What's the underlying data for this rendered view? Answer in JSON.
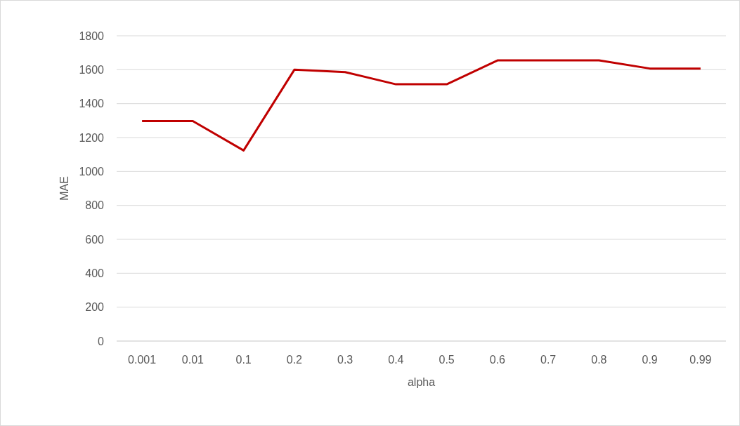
{
  "chart_data": {
    "type": "line",
    "xlabel": "alpha",
    "ylabel": "MAE",
    "categories": [
      "0.001",
      "0.01",
      "0.1",
      "0.2",
      "0.3",
      "0.4",
      "0.5",
      "0.6",
      "0.7",
      "0.8",
      "0.9",
      "0.99"
    ],
    "series": [
      {
        "color": "#c00000",
        "values": [
          1297,
          1297,
          1124,
          1600,
          1586,
          1514,
          1514,
          1655,
          1655,
          1655,
          1607,
          1607
        ]
      }
    ],
    "ylim": [
      0,
      1800
    ],
    "yticks": [
      0,
      200,
      400,
      600,
      800,
      1000,
      1200,
      1400,
      1600,
      1800
    ],
    "grid": "y"
  }
}
